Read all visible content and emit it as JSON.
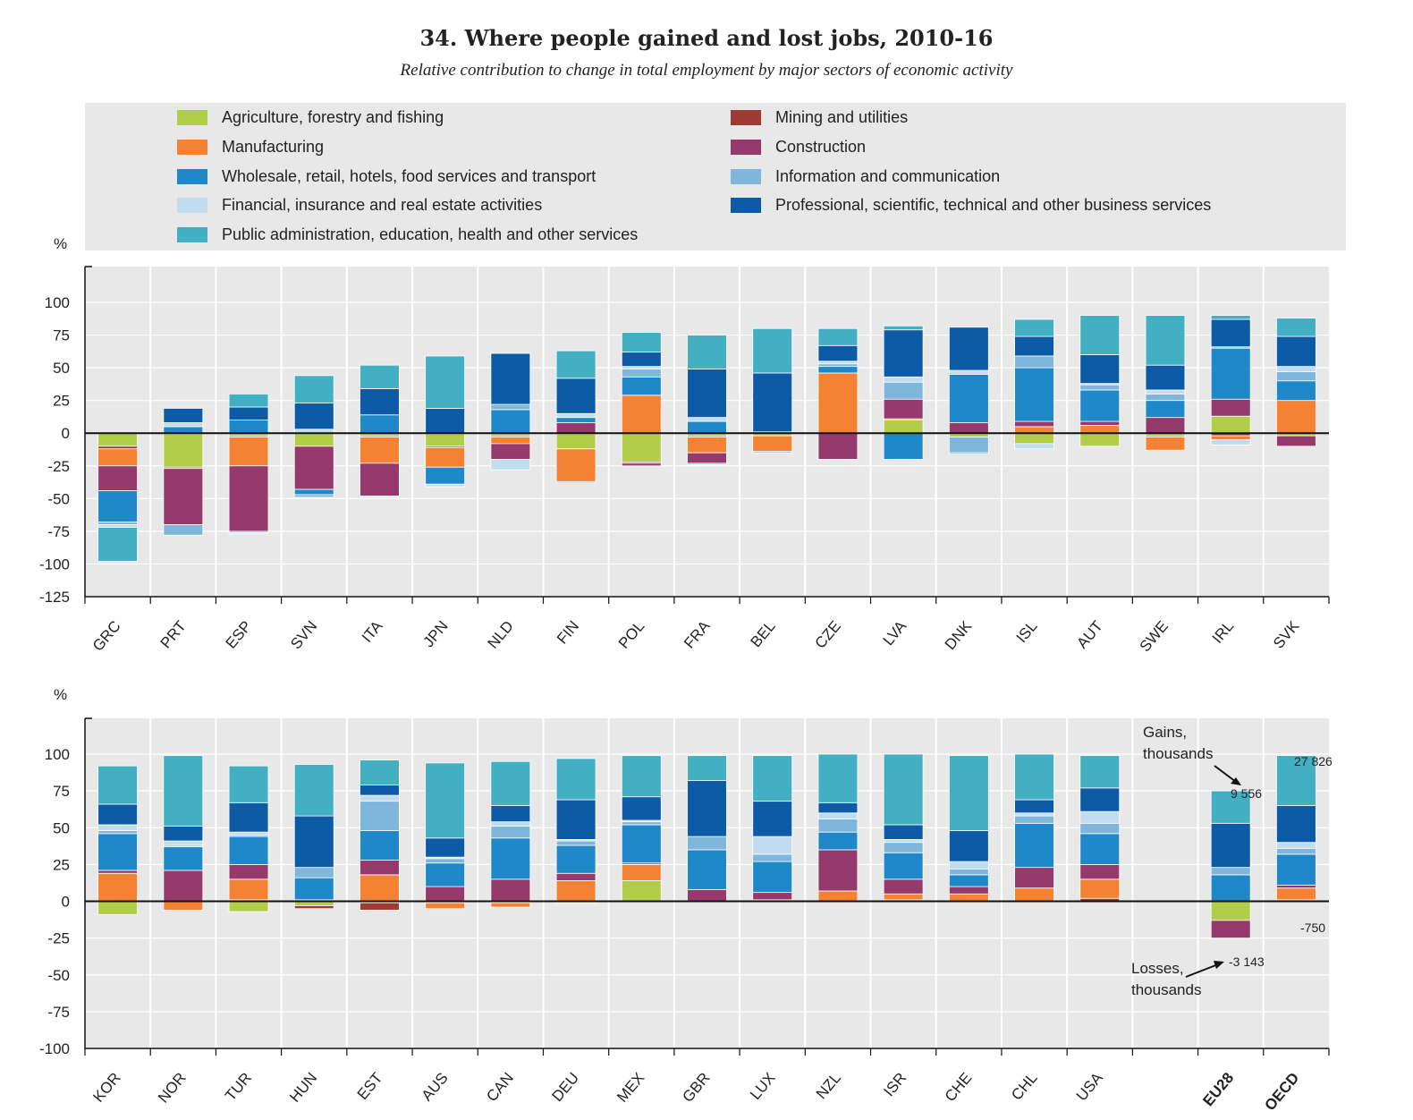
{
  "title": "34. Where people gained and lost jobs, 2010-16",
  "subtitle": "Relative contribution to change in total employment by major sectors of economic activity",
  "legend": [
    {
      "key": "agri",
      "label": "Agriculture, forestry and fishing",
      "color": "#b2cd4a"
    },
    {
      "key": "mining",
      "label": "Mining and utilities",
      "color": "#9e3b34"
    },
    {
      "key": "manu",
      "label": "Manufacturing",
      "color": "#f58233"
    },
    {
      "key": "constr",
      "label": "Construction",
      "color": "#963a6e"
    },
    {
      "key": "whole",
      "label": "Wholesale, retail, hotels, food services and transport",
      "color": "#1e88c8"
    },
    {
      "key": "info",
      "label": "Information and communication",
      "color": "#7eb6dc"
    },
    {
      "key": "fin",
      "label": "Financial, insurance and real estate activities",
      "color": "#c2dcef"
    },
    {
      "key": "prof",
      "label": "Professional, scientific, technical and other business services",
      "color": "#0d5aa7"
    },
    {
      "key": "pub",
      "label": "Public administration, education, health and other services",
      "color": "#43afc3"
    }
  ],
  "y_unit": "%",
  "chart_data": [
    {
      "type": "bar",
      "stacked": true,
      "ylim": [
        -125,
        100
      ],
      "yticks": [
        100,
        75,
        50,
        25,
        0,
        -25,
        -50,
        -75,
        -100,
        -125
      ],
      "categories": [
        "GRC",
        "PRT",
        "ESP",
        "SVN",
        "ITA",
        "JPN",
        "NLD",
        "FIN",
        "POL",
        "FRA",
        "BEL",
        "CZE",
        "LVA",
        "DNK",
        "ISL",
        "AUT",
        "SWE",
        "IRL",
        "SVK"
      ],
      "series": [
        {
          "key": "agri",
          "values": [
            -10,
            -26,
            -2,
            -10,
            -2,
            -10,
            -2,
            -12,
            -22,
            -2,
            -2,
            0,
            10,
            -3,
            -8,
            -10,
            -2,
            13,
            -2
          ]
        },
        {
          "key": "mining",
          "values": [
            -2,
            -1,
            -1,
            0,
            -1,
            -1,
            -1,
            0,
            -1,
            -1,
            0,
            0,
            0,
            0,
            0,
            0,
            -1,
            -2,
            0
          ]
        },
        {
          "key": "manu",
          "values": [
            -13,
            0,
            -22,
            0,
            -20,
            -15,
            -5,
            -25,
            29,
            -12,
            -12,
            46,
            1,
            0,
            5,
            6,
            -10,
            -3,
            25
          ]
        },
        {
          "key": "constr",
          "values": [
            -19,
            -43,
            -50,
            -33,
            -25,
            0,
            -12,
            8,
            -2,
            -8,
            0,
            -20,
            15,
            8,
            4,
            3,
            12,
            13,
            -8
          ]
        },
        {
          "key": "whole",
          "values": [
            -24,
            5,
            10,
            -4,
            14,
            -13,
            18,
            4,
            14,
            9,
            1,
            5,
            -20,
            37,
            41,
            24,
            13,
            39,
            15
          ]
        },
        {
          "key": "info",
          "values": [
            -2,
            -8,
            -1,
            -2,
            0,
            0,
            4,
            -1,
            6,
            -1,
            -1,
            2,
            13,
            -12,
            9,
            4,
            5,
            1,
            7
          ]
        },
        {
          "key": "fin",
          "values": [
            -2,
            3,
            -1,
            3,
            0,
            -2,
            -8,
            3,
            2,
            3,
            0,
            2,
            4,
            3,
            -4,
            1,
            3,
            -4,
            4
          ]
        },
        {
          "key": "prof",
          "values": [
            0,
            11,
            10,
            20,
            20,
            19,
            39,
            27,
            11,
            37,
            45,
            12,
            36,
            33,
            15,
            22,
            19,
            21,
            23
          ]
        },
        {
          "key": "pub",
          "values": [
            -26,
            0,
            10,
            21,
            18,
            40,
            0,
            21,
            15,
            26,
            34,
            13,
            3,
            -1,
            13,
            30,
            38,
            3,
            14
          ]
        }
      ]
    },
    {
      "type": "bar",
      "stacked": true,
      "ylim": [
        -100,
        100
      ],
      "yticks": [
        100,
        75,
        50,
        25,
        0,
        -25,
        -50,
        -75,
        -100
      ],
      "categories": [
        "KOR",
        "NOR",
        "TUR",
        "HUN",
        "EST",
        "AUS",
        "CAN",
        "DEU",
        "MEX",
        "GBR",
        "LUX",
        "NZL",
        "ISR",
        "CHE",
        "CHL",
        "USA",
        "EU28",
        "OECD"
      ],
      "series": [
        {
          "key": "agri",
          "values": [
            -9,
            0,
            -7,
            -3,
            -1,
            -1,
            -1,
            -1,
            14,
            0,
            0,
            0,
            0,
            0,
            0,
            0,
            -13,
            0
          ]
        },
        {
          "key": "mining",
          "values": [
            0,
            0,
            1,
            -2,
            -5,
            0,
            0,
            0,
            0,
            0,
            0,
            0,
            1,
            0,
            0,
            2,
            0,
            1
          ]
        },
        {
          "key": "manu",
          "values": [
            19,
            -6,
            14,
            0,
            18,
            -4,
            -3,
            14,
            11,
            0,
            1,
            7,
            4,
            5,
            9,
            13,
            0,
            8
          ]
        },
        {
          "key": "constr",
          "values": [
            2,
            21,
            10,
            1,
            10,
            10,
            15,
            5,
            1,
            8,
            5,
            28,
            10,
            5,
            14,
            10,
            -12,
            2
          ]
        },
        {
          "key": "whole",
          "values": [
            25,
            16,
            19,
            15,
            20,
            16,
            28,
            19,
            26,
            27,
            21,
            12,
            18,
            8,
            30,
            21,
            18,
            21
          ]
        },
        {
          "key": "info",
          "values": [
            2,
            1,
            1,
            7,
            20,
            3,
            8,
            3,
            2,
            9,
            5,
            9,
            7,
            4,
            5,
            7,
            5,
            4
          ]
        },
        {
          "key": "fin",
          "values": [
            4,
            3,
            2,
            0,
            4,
            1,
            3,
            1,
            1,
            0,
            12,
            4,
            2,
            5,
            2,
            8,
            0,
            4
          ]
        },
        {
          "key": "prof",
          "values": [
            14,
            10,
            20,
            35,
            7,
            13,
            11,
            27,
            16,
            38,
            24,
            7,
            10,
            21,
            9,
            16,
            30,
            25
          ]
        },
        {
          "key": "pub",
          "values": [
            26,
            48,
            25,
            35,
            17,
            51,
            30,
            28,
            28,
            17,
            31,
            33,
            48,
            51,
            31,
            22,
            22,
            34
          ]
        }
      ]
    }
  ],
  "annotations": {
    "gains_label_1": "Gains,",
    "gains_label_2": "thousands",
    "losses_label_1": "Losses,",
    "losses_label_2": "thousands",
    "eu28_gain": "9 556",
    "eu28_loss": "-3 143",
    "oecd_gain": "27 826",
    "oecd_loss": "-750"
  },
  "bold_categories": [
    "EU28",
    "OECD"
  ]
}
